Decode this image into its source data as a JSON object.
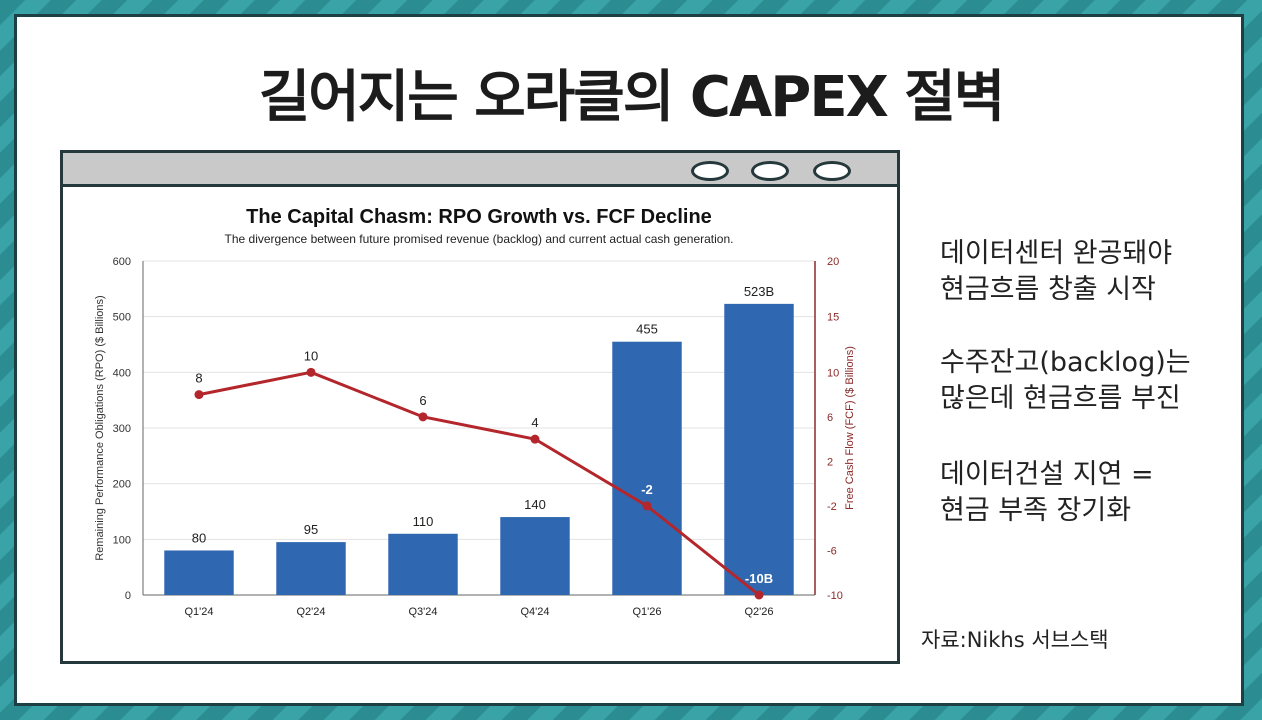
{
  "slide": {
    "title": "길어지는 오라클의 CAPEX 절벽",
    "notes": [
      {
        "line1": "데이터센터 완공돼야",
        "line2": "현금흐름 창출 시작"
      },
      {
        "line1": "수주잔고(backlog)는",
        "line2": "많은데 현금흐름 부진"
      },
      {
        "line1": "데이터건설 지연 =",
        "line2": "현금 부족 장기화"
      }
    ],
    "source": "자료:Nikhs 서브스택",
    "colors": {
      "frame": "#25383b",
      "bar": "#2f68b1",
      "line": "#b3262c",
      "bg_teal": "#2b8d92"
    }
  },
  "chart_data": {
    "type": "bar",
    "title": "The Capital Chasm: RPO Growth vs. FCF Decline",
    "subtitle": "The divergence between future promised revenue (backlog) and current actual cash generation.",
    "categories": [
      "Q1'24",
      "Q2'24",
      "Q3'24",
      "Q4'24",
      "Q1'26",
      "Q2'26"
    ],
    "series": [
      {
        "type": "bar",
        "axis": "left",
        "values": [
          80,
          95,
          110,
          140,
          455,
          523
        ],
        "labels": [
          "80",
          "95",
          "110",
          "140",
          "455",
          "523B"
        ]
      },
      {
        "type": "line",
        "axis": "right",
        "values": [
          8,
          10,
          6,
          4,
          -2,
          -10
        ],
        "labels": [
          "8",
          "10",
          "6",
          "4",
          "-2",
          "-10B"
        ]
      }
    ],
    "ylabel": "Remaining Performance Obligations (RPO) ($ Billions)",
    "y2label": "Free Cash Flow (FCF) ($ Billions)",
    "ylim": [
      0,
      600
    ],
    "y2lim": [
      -10,
      20
    ],
    "yticks": [
      "0",
      "100",
      "200",
      "300",
      "400",
      "500",
      "600"
    ],
    "y2ticks": [
      "-10",
      "-6",
      "-2",
      "2",
      "6",
      "10",
      "15",
      "20"
    ],
    "y2tick_values": [
      -10,
      -6,
      -2,
      2,
      6,
      10,
      15,
      20
    ],
    "grid": true
  }
}
